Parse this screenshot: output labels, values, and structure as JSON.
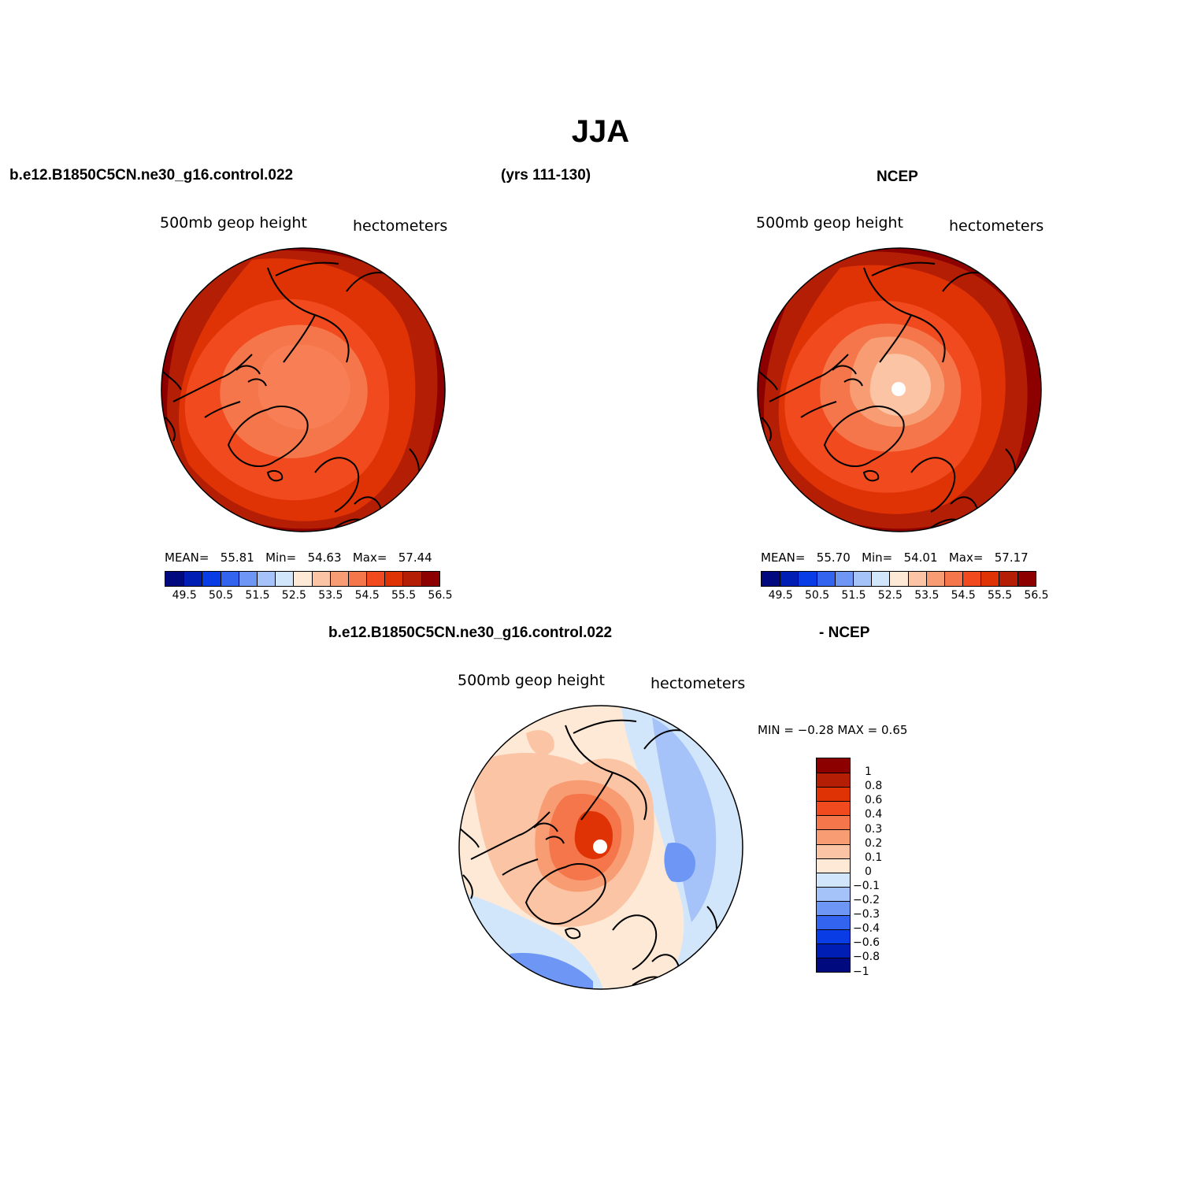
{
  "title": "JJA",
  "top_headers": {
    "left": "b.e12.B1850C5CN.ne30_g16.control.022",
    "center": "(yrs 111-130)",
    "right": "NCEP"
  },
  "bottom_header": {
    "left": "b.e12.B1850C5CN.ne30_g16.control.022",
    "right": "- NCEP"
  },
  "panels": [
    {
      "variable": "500mb  geop  height",
      "units": "hectometers",
      "stats": {
        "mean_label": "MEAN=",
        "mean": "55.81",
        "min_label": "Min=",
        "min": "54.63",
        "max_label": "Max=",
        "max": "57.44"
      }
    },
    {
      "variable": "500mb  geop  height",
      "units": "hectometers",
      "stats": {
        "mean_label": "MEAN=",
        "mean": "55.70",
        "min_label": "Min=",
        "min": "54.01",
        "max_label": "Max=",
        "max": "57.17"
      }
    }
  ],
  "diff_panel": {
    "variable": "500mb  geop  height",
    "units": "hectometers",
    "stats_text": "MIN =   −0.28  MAX =     0.65"
  },
  "colorbar_horizontal": {
    "colors": [
      "#000a7e",
      "#001eb4",
      "#0a3ce6",
      "#3264f0",
      "#6e96f5",
      "#a5c3f8",
      "#d2e6fb",
      "#fde9d6",
      "#fbc4a5",
      "#f89d73",
      "#f6764b",
      "#f04a1e",
      "#e03305",
      "#b41e05",
      "#8c0000"
    ],
    "tick_labels": [
      "49.5",
      "50.5",
      "51.5",
      "52.5",
      "53.5",
      "54.5",
      "55.5",
      "56.5"
    ]
  },
  "colorbar_vertical": {
    "colors_top_to_bottom": [
      "#8c0000",
      "#b41e05",
      "#e03305",
      "#f04a1e",
      "#f6764b",
      "#f89d73",
      "#fbc4a5",
      "#fde9d6",
      "#d2e6fb",
      "#a5c3f8",
      "#6e96f5",
      "#3264f0",
      "#0a3ce6",
      "#001eb4",
      "#000a7e"
    ],
    "tick_labels": [
      "1",
      "0.8",
      "0.6",
      "0.4",
      "0.3",
      "0.2",
      "0.1",
      "0",
      "−0.1",
      "−0.2",
      "−0.3",
      "−0.4",
      "−0.6",
      "−0.8",
      "−1"
    ]
  }
}
